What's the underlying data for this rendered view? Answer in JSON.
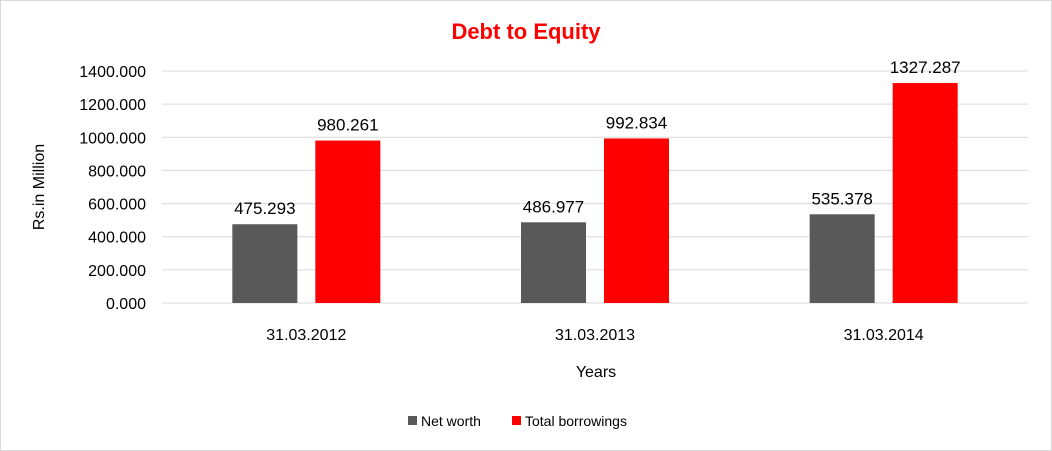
{
  "chart_data": {
    "type": "bar",
    "title": "Debt to Equity",
    "title_color": "#ff0000",
    "xlabel": "Years",
    "ylabel": "Rs.in Million",
    "categories": [
      "31.03.2012",
      "31.03.2013",
      "31.03.2014"
    ],
    "series": [
      {
        "name": "Net worth",
        "color": "#595959",
        "values": [
          475.293,
          486.977,
          535.378
        ],
        "labels": [
          "475.293",
          "486.977",
          "535.378"
        ]
      },
      {
        "name": "Total borrowings",
        "color": "#ff0000",
        "values": [
          980.261,
          992.834,
          1327.287
        ],
        "labels": [
          "980.261",
          "992.834",
          "1327.287"
        ]
      }
    ],
    "ylim": [
      0,
      1400
    ],
    "yticks": [
      0,
      200,
      400,
      600,
      800,
      1000,
      1200,
      1400
    ],
    "ytick_labels": [
      "0.000",
      "200.000",
      "400.000",
      "600.000",
      "800.000",
      "1000.000",
      "1200.000",
      "1400.000"
    ],
    "grid": true,
    "legend_position": "bottom"
  }
}
